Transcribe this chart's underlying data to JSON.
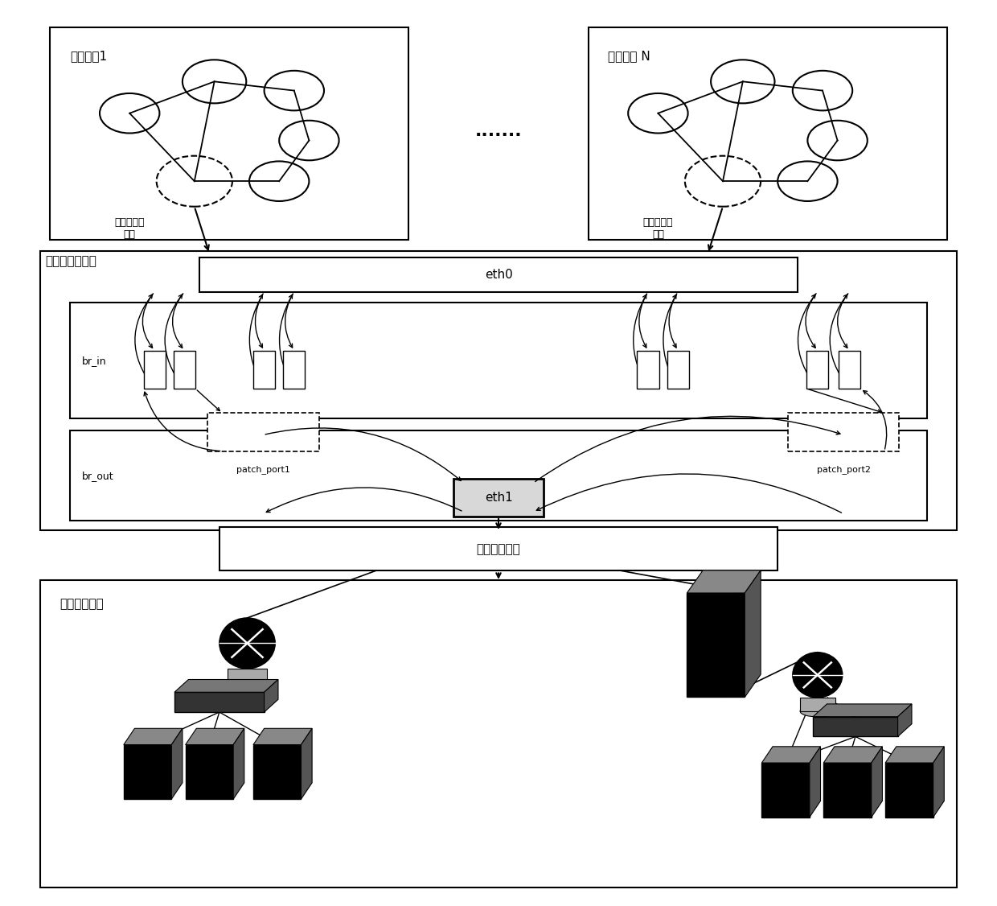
{
  "title": "",
  "bg_color": "#ffffff",
  "vnet1_label": "虚拟网络1",
  "vnetN_label": "虚拟网络 N",
  "server_label": "流量处理服务器",
  "physical_label": "实物接入设备",
  "test_label": "测试实物设备",
  "eth0_label": "eth0",
  "eth1_label": "eth1",
  "br_in_label": "br_in",
  "br_out_label": "br_out",
  "patch_port1_label": "patch_port1",
  "patch_port2_label": "patch_port2",
  "vnet_entry_label": "虚拟网络接\n入点",
  "dots_label": ".......",
  "font_size": 11,
  "small_font": 9
}
